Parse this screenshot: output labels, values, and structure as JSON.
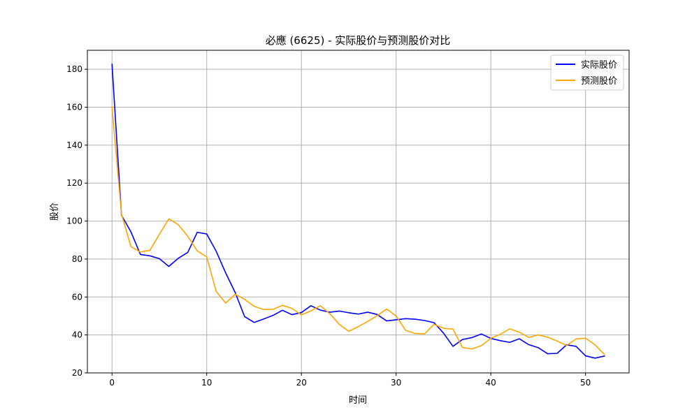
{
  "chart_data": {
    "type": "line",
    "title": "必應 (6625) - 实际股价与预测股价对比",
    "xlabel": "时间",
    "ylabel": "股价",
    "xlim": [
      -2.6,
      54.6
    ],
    "ylim": [
      20,
      190
    ],
    "xticks": [
      0,
      10,
      20,
      30,
      40,
      50
    ],
    "yticks": [
      20,
      40,
      60,
      80,
      100,
      120,
      140,
      160,
      180
    ],
    "grid": true,
    "legend_position": "top-right",
    "x": [
      0,
      1,
      2,
      3,
      4,
      5,
      6,
      7,
      8,
      9,
      10,
      11,
      12,
      13,
      14,
      15,
      16,
      17,
      18,
      19,
      20,
      21,
      22,
      23,
      24,
      25,
      26,
      27,
      28,
      29,
      30,
      31,
      32,
      33,
      34,
      35,
      36,
      37,
      38,
      39,
      40,
      41,
      42,
      43,
      44,
      45,
      46,
      47,
      48,
      49,
      50,
      51,
      52
    ],
    "series": [
      {
        "name": "实际股价",
        "color": "#0000ff",
        "values": [
          182.7,
          103.1,
          94.3,
          82.4,
          81.7,
          80.2,
          76.1,
          80.4,
          83.5,
          94.1,
          93.2,
          84.1,
          72.7,
          62.4,
          49.7,
          46.6,
          48.4,
          50.3,
          53.0,
          50.7,
          51.8,
          55.4,
          53.1,
          52.0,
          52.6,
          51.7,
          51.0,
          52.0,
          50.8,
          47.4,
          48.0,
          48.6,
          48.3,
          47.6,
          46.5,
          41.0,
          34.0,
          37.6,
          38.6,
          40.5,
          38.2,
          37.0,
          36.1,
          38.0,
          34.9,
          33.3,
          30.1,
          30.3,
          34.8,
          34.0,
          29.0,
          27.8,
          28.9
        ]
      },
      {
        "name": "预测股价",
        "color": "#ffa500",
        "values": [
          160.2,
          103.7,
          86.5,
          83.7,
          84.6,
          93.0,
          101.2,
          98.1,
          92.0,
          84.3,
          81.1,
          62.9,
          56.8,
          61.4,
          58.8,
          55.1,
          53.4,
          53.5,
          55.6,
          54.0,
          50.6,
          52.7,
          55.4,
          51.2,
          45.6,
          41.9,
          44.4,
          47.1,
          50.2,
          53.7,
          50.0,
          42.4,
          40.8,
          40.6,
          45.6,
          43.5,
          43.1,
          33.4,
          32.6,
          34.4,
          38.2,
          40.4,
          43.2,
          41.5,
          38.7,
          40.0,
          38.8,
          36.8,
          34.4,
          37.9,
          38.3,
          34.8,
          29.7
        ]
      }
    ]
  }
}
